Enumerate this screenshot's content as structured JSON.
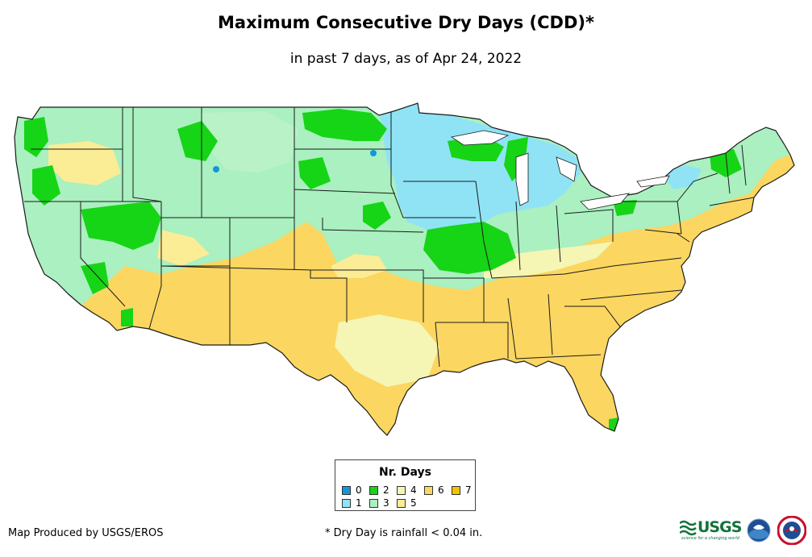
{
  "title": "Maximum Consecutive Dry Days (CDD)*",
  "subtitle": "in past 7 days, as of Apr 24, 2022",
  "legend": {
    "title": "Nr. Days",
    "items": [
      {
        "label": "0",
        "color": "#1496dc"
      },
      {
        "label": "1",
        "color": "#8fe3f5"
      },
      {
        "label": "2",
        "color": "#16d416"
      },
      {
        "label": "3",
        "color": "#aaf0c0"
      },
      {
        "label": "4",
        "color": "#f5f5b4"
      },
      {
        "label": "5",
        "color": "#fbec96"
      },
      {
        "label": "6",
        "color": "#fbd661"
      },
      {
        "label": "7",
        "color": "#f3c300"
      }
    ]
  },
  "footer": {
    "producer": "Map Produced by USGS/EROS",
    "note": "* Dry Day is rainfall < 0.04 in."
  },
  "logos": {
    "usgs_text": "USGS",
    "usgs_tagline": "science for a changing world"
  },
  "colors": {
    "border": "#1a1a1a",
    "base": "#aaf0c0"
  }
}
